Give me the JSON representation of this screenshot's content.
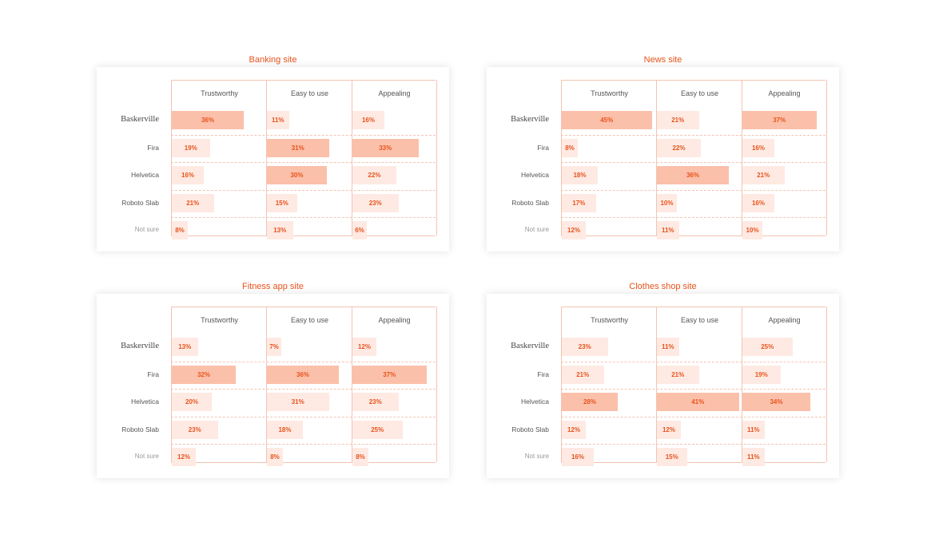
{
  "chart_data": [
    {
      "type": "bar",
      "title": "Banking site",
      "columns": [
        "Trustworthy",
        "Easy to use",
        "Appealing"
      ],
      "rows": [
        "Baskerville",
        "Fira",
        "Helvetica",
        "Roboto Slab",
        "Not sure"
      ],
      "values": [
        [
          36,
          11,
          16
        ],
        [
          19,
          31,
          33
        ],
        [
          16,
          30,
          22
        ],
        [
          21,
          15,
          23
        ],
        [
          8,
          13,
          6
        ]
      ],
      "highlight": [
        [
          true,
          false,
          false
        ],
        [
          false,
          true,
          true
        ],
        [
          false,
          true,
          false
        ],
        [
          false,
          false,
          false
        ],
        [
          false,
          false,
          false
        ]
      ]
    },
    {
      "type": "bar",
      "title": "News site",
      "columns": [
        "Trustworthy",
        "Easy to use",
        "Appealing"
      ],
      "rows": [
        "Baskerville",
        "Fira",
        "Helvetica",
        "Roboto Slab",
        "Not sure"
      ],
      "values": [
        [
          45,
          21,
          37
        ],
        [
          8,
          22,
          16
        ],
        [
          18,
          36,
          21
        ],
        [
          17,
          10,
          16
        ],
        [
          12,
          11,
          10
        ]
      ],
      "highlight": [
        [
          true,
          false,
          true
        ],
        [
          false,
          false,
          false
        ],
        [
          false,
          true,
          false
        ],
        [
          false,
          false,
          false
        ],
        [
          false,
          false,
          false
        ]
      ]
    },
    {
      "type": "bar",
      "title": "Fitness app site",
      "columns": [
        "Trustworthy",
        "Easy to use",
        "Appealing"
      ],
      "rows": [
        "Baskerville",
        "Fira",
        "Helvetica",
        "Roboto Slab",
        "Not sure"
      ],
      "values": [
        [
          13,
          7,
          12
        ],
        [
          32,
          36,
          37
        ],
        [
          20,
          31,
          23
        ],
        [
          23,
          18,
          25
        ],
        [
          12,
          8,
          8
        ]
      ],
      "highlight": [
        [
          false,
          false,
          false
        ],
        [
          true,
          true,
          true
        ],
        [
          false,
          false,
          false
        ],
        [
          false,
          false,
          false
        ],
        [
          false,
          false,
          false
        ]
      ]
    },
    {
      "type": "bar",
      "title": "Clothes shop site",
      "columns": [
        "Trustworthy",
        "Easy to use",
        "Appealing"
      ],
      "rows": [
        "Baskerville",
        "Fira",
        "Helvetica",
        "Roboto Slab",
        "Not sure"
      ],
      "values": [
        [
          23,
          11,
          25
        ],
        [
          21,
          21,
          19
        ],
        [
          28,
          41,
          34
        ],
        [
          12,
          12,
          11
        ],
        [
          16,
          15,
          11
        ]
      ],
      "highlight": [
        [
          false,
          false,
          false
        ],
        [
          false,
          false,
          false
        ],
        [
          true,
          true,
          true
        ],
        [
          false,
          false,
          false
        ],
        [
          false,
          false,
          false
        ]
      ]
    }
  ],
  "colors": {
    "title": "#e8531c",
    "bar_high": "#fbc0aa",
    "bar_low": "#feeae3",
    "value_text": "#e8531c",
    "grid": "#f3c4b2"
  }
}
